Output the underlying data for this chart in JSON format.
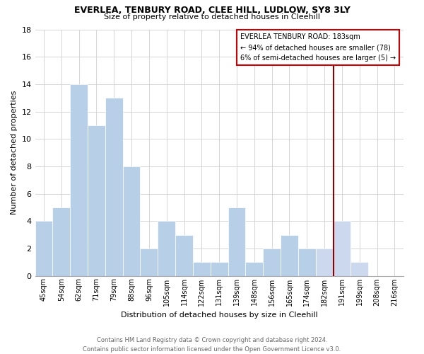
{
  "title1": "EVERLEA, TENBURY ROAD, CLEE HILL, LUDLOW, SY8 3LY",
  "title2": "Size of property relative to detached houses in Cleehill",
  "xlabel": "Distribution of detached houses by size in Cleehill",
  "ylabel": "Number of detached properties",
  "categories": [
    "45sqm",
    "54sqm",
    "62sqm",
    "71sqm",
    "79sqm",
    "88sqm",
    "96sqm",
    "105sqm",
    "114sqm",
    "122sqm",
    "131sqm",
    "139sqm",
    "148sqm",
    "156sqm",
    "165sqm",
    "174sqm",
    "182sqm",
    "191sqm",
    "199sqm",
    "208sqm",
    "216sqm"
  ],
  "values": [
    4,
    5,
    14,
    11,
    13,
    8,
    2,
    4,
    3,
    1,
    1,
    5,
    1,
    2,
    3,
    2,
    2,
    4,
    1,
    0,
    0
  ],
  "bar_color_left": "#b8cfe8",
  "bar_color_right": "#ccd8ee",
  "vline_bar_idx": 16,
  "vline_color": "#8b0000",
  "annotation_title": "EVERLEA TENBURY ROAD: 183sqm",
  "annotation_line1": "← 94% of detached houses are smaller (78)",
  "annotation_line2": "6% of semi-detached houses are larger (5) →",
  "annotation_box_color": "#ffffff",
  "annotation_border_color": "#cc0000",
  "footer1": "Contains HM Land Registry data © Crown copyright and database right 2024.",
  "footer2": "Contains public sector information licensed under the Open Government Licence v3.0.",
  "ylim": [
    0,
    18
  ],
  "yticks": [
    0,
    2,
    4,
    6,
    8,
    10,
    12,
    14,
    16,
    18
  ],
  "background_color": "#ffffff",
  "grid_color": "#d0d0d0",
  "title1_fontsize": 9,
  "title2_fontsize": 8,
  "xlabel_fontsize": 8,
  "ylabel_fontsize": 8,
  "xtick_fontsize": 7,
  "ytick_fontsize": 8,
  "footer_fontsize": 6,
  "annot_fontsize": 7
}
